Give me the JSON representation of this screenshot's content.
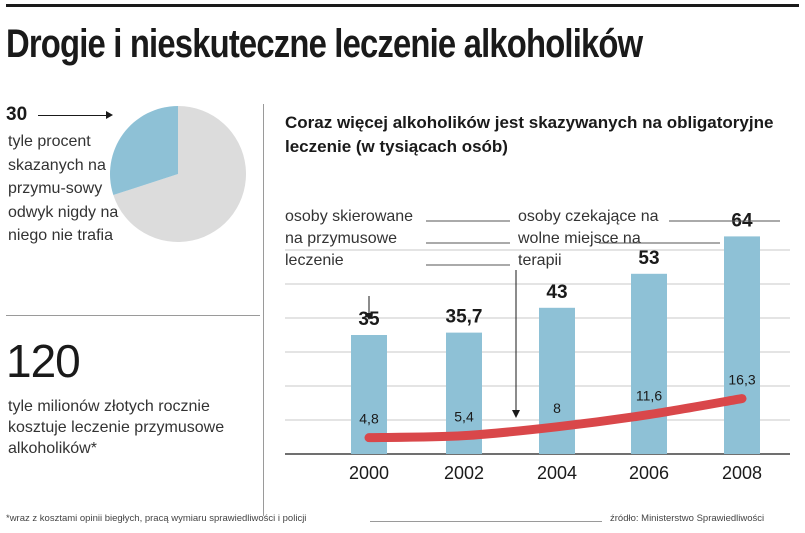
{
  "header": {
    "title": "Drogie i nieskuteczne leczenie alkoholików"
  },
  "side": {
    "percent_value": "30",
    "percent_text": "tyle procent skazanych na przymu-sowy odwyk nigdy na niego nie trafia",
    "cost_value": "120",
    "cost_text": "tyle milionów złotych rocznie kosztuje leczenie przymusowe alkoholików*"
  },
  "pie_data": {
    "highlight_percent": 30,
    "highlight_color": "#8ec1d6",
    "rest_color": "#dcdcdc"
  },
  "chart_data": {
    "type": "bar",
    "title": "Coraz więcej alkoholików jest skazywanych na obligatoryjne leczenie (w tysiącach osób)",
    "categories": [
      "2000",
      "2002",
      "2004",
      "2006",
      "2008"
    ],
    "series": [
      {
        "name": "osoby skierowane na przymusowe leczenie",
        "values": [
          35,
          35.7,
          43,
          53,
          64
        ],
        "value_labels": [
          "35",
          "35,7",
          "43",
          "53",
          "64"
        ],
        "color": "#8ec1d6"
      },
      {
        "name": "osoby czekające na wolne miejsce na terapii",
        "values": [
          4.8,
          5.4,
          8,
          11.6,
          16.3
        ],
        "value_labels": [
          "4,8",
          "5,4",
          "8",
          "11,6",
          "16,3"
        ],
        "color": "#d9474a"
      }
    ],
    "ylim": [
      0,
      70
    ],
    "grid": true
  },
  "footer": {
    "footnote": "*wraz z kosztami opinii biegłych, pracą wymiaru sprawiedliwości i policji",
    "source": "źródło: Ministerstwo Sprawiedliwości"
  }
}
